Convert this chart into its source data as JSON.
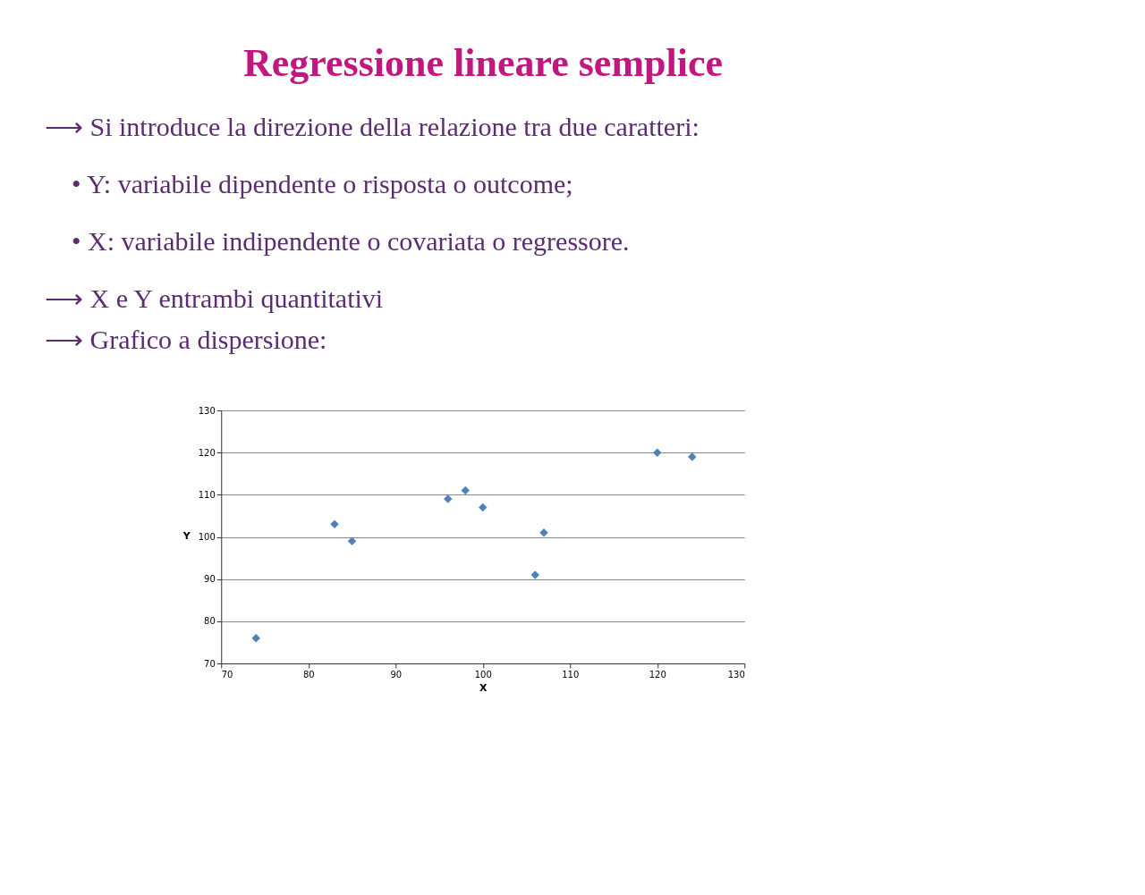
{
  "chart_data": {
    "type": "scatter",
    "title": "Regressione lineare semplice",
    "annotations": [
      "⟶ Si introduce la direzione della relazione tra due caratteri:",
      "• Y: variabile dipendente o risposta o outcome;",
      "• X: variabile indipendente o covariata o regressore.",
      "⟶ X e Y entrambi quantitativi",
      "⟶ Grafico a dispersione:"
    ],
    "xlabel": "X",
    "ylabel": "Y",
    "x": [
      74,
      83,
      85,
      96,
      98,
      100,
      106,
      107,
      120,
      124
    ],
    "values": [
      76,
      103,
      99,
      109,
      111,
      107,
      91,
      101,
      120,
      119
    ],
    "color": "#4f81bd",
    "marker": "diamond",
    "grid": "y",
    "xlim": [
      70,
      130
    ],
    "xticks": [
      70,
      80,
      90,
      100,
      110,
      120,
      130
    ],
    "ylim": [
      70,
      130
    ],
    "yticks": [
      70,
      80,
      90,
      100,
      110,
      120,
      130
    ]
  }
}
